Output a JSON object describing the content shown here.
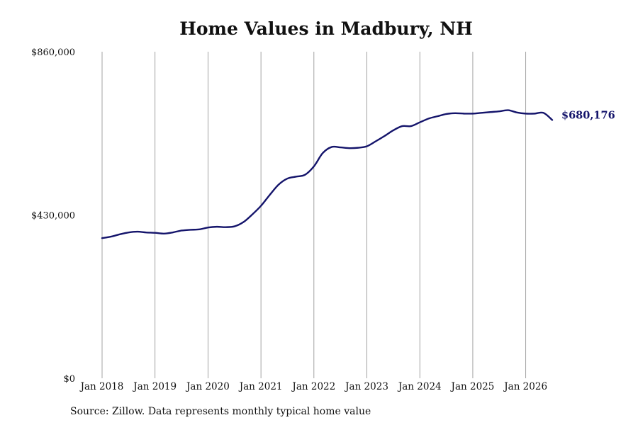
{
  "chart_data": {
    "type": "line",
    "title": "Home Values in Madbury, NH",
    "xlabel": "",
    "ylabel": "",
    "xlim": [
      "2018-01",
      "2026-07"
    ],
    "ylim": [
      0,
      860000
    ],
    "yticks": [
      "$0",
      "$430,000",
      "$860,000"
    ],
    "ytick_values": [
      0,
      430000,
      860000
    ],
    "xticks": [
      "Jan 2018",
      "Jan 2019",
      "Jan 2020",
      "Jan 2021",
      "Jan 2022",
      "Jan 2023",
      "Jan 2024",
      "Jan 2025",
      "Jan 2026"
    ],
    "xtick_values": [
      "2018-01",
      "2019-01",
      "2020-01",
      "2021-01",
      "2022-01",
      "2023-01",
      "2024-01",
      "2025-01",
      "2026-01"
    ],
    "grid": "vertical",
    "line_color": "#14146b",
    "grid_color": "#8c8c8c",
    "series": [
      {
        "x": [
          "2018-01",
          "2018-03",
          "2018-05",
          "2018-07",
          "2018-09",
          "2018-11",
          "2019-01",
          "2019-03",
          "2019-05",
          "2019-07",
          "2019-09",
          "2019-11",
          "2020-01",
          "2020-03",
          "2020-05",
          "2020-07",
          "2020-09",
          "2020-11",
          "2021-01",
          "2021-03",
          "2021-05",
          "2021-07",
          "2021-09",
          "2021-11",
          "2022-01",
          "2022-03",
          "2022-05",
          "2022-07",
          "2022-09",
          "2022-11",
          "2023-01",
          "2023-03",
          "2023-05",
          "2023-07",
          "2023-09",
          "2023-11",
          "2024-01",
          "2024-03",
          "2024-05",
          "2024-07",
          "2024-09",
          "2024-11",
          "2025-01",
          "2025-03",
          "2025-05",
          "2025-07",
          "2025-09",
          "2025-11",
          "2026-01",
          "2026-03",
          "2026-05",
          "2026-07"
        ],
        "values": [
          369000,
          373000,
          379000,
          384000,
          386000,
          384000,
          383000,
          381000,
          384000,
          389000,
          391000,
          392000,
          397000,
          399000,
          398000,
          400000,
          411000,
          431000,
          454000,
          483000,
          510000,
          526000,
          531000,
          536000,
          558000,
          593000,
          609000,
          608000,
          606000,
          607000,
          611000,
          624000,
          638000,
          653000,
          664000,
          664000,
          674000,
          684000,
          690000,
          696000,
          698000,
          697000,
          697000,
          699000,
          701000,
          703000,
          706000,
          700000,
          697000,
          697000,
          699000,
          680176
        ]
      }
    ],
    "end_label": "$680,176"
  },
  "footer": {
    "source": "Source: Zillow. Data represents monthly typical home value"
  }
}
